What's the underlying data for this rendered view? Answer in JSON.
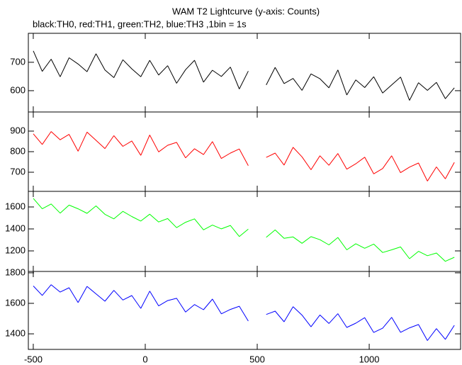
{
  "title": "WAM T2 Lightcurve (y-axis: Counts)",
  "subtitle": "black:TH0, red:TH1, green:TH2, blue:TH3 ,1bin = 1s",
  "chart_data": [
    {
      "type": "line",
      "color": "#000000",
      "x": [
        -500,
        -460,
        -420,
        -380,
        -340,
        -300,
        -260,
        -220,
        -180,
        -140,
        -100,
        -60,
        -20,
        20,
        60,
        100,
        140,
        180,
        220,
        260,
        300,
        340,
        380,
        420,
        460,
        500,
        540,
        580,
        620,
        660,
        700,
        740,
        780,
        820,
        860,
        900,
        940,
        980,
        1020,
        1060,
        1100,
        1140,
        1180,
        1220,
        1260,
        1300,
        1340,
        1380
      ],
      "values": [
        740,
        668,
        711,
        649,
        716,
        694,
        667,
        730,
        673,
        646,
        709,
        677,
        649,
        707,
        655,
        688,
        626,
        674,
        707,
        630,
        672,
        650,
        683,
        606,
        669,
        null,
        620,
        682,
        625,
        643,
        601,
        659,
        642,
        610,
        673,
        585,
        638,
        611,
        649,
        592,
        620,
        648,
        566,
        628,
        601,
        629,
        572,
        610
      ],
      "xlim": [
        -522,
        1408
      ],
      "ylim": [
        525,
        802
      ],
      "yticks": [
        600,
        700
      ]
    },
    {
      "type": "line",
      "color": "#ff0000",
      "x": [
        -500,
        -460,
        -420,
        -380,
        -340,
        -300,
        -260,
        -220,
        -180,
        -140,
        -100,
        -60,
        -20,
        20,
        60,
        100,
        140,
        180,
        220,
        260,
        300,
        340,
        380,
        420,
        460,
        500,
        540,
        580,
        620,
        660,
        700,
        740,
        780,
        820,
        860,
        900,
        940,
        980,
        1020,
        1060,
        1100,
        1140,
        1180,
        1220,
        1260,
        1300,
        1340,
        1380
      ],
      "values": [
        887,
        835,
        898,
        858,
        884,
        802,
        895,
        855,
        815,
        878,
        826,
        852,
        782,
        881,
        799,
        831,
        845,
        770,
        814,
        786,
        849,
        767,
        793,
        813,
        732,
        null,
        772,
        793,
        735,
        821,
        775,
        712,
        780,
        734,
        791,
        715,
        741,
        773,
        692,
        718,
        780,
        698,
        725,
        745,
        657,
        726,
        668,
        748
      ],
      "xlim": [
        -522,
        1408
      ],
      "ylim": [
        607,
        993
      ],
      "yticks": [
        700,
        800,
        900
      ]
    },
    {
      "type": "line",
      "color": "#00ff00",
      "x": [
        -500,
        -460,
        -420,
        -380,
        -340,
        -300,
        -260,
        -220,
        -180,
        -140,
        -100,
        -60,
        -20,
        20,
        60,
        100,
        140,
        180,
        220,
        260,
        300,
        340,
        380,
        420,
        460,
        500,
        540,
        580,
        620,
        660,
        700,
        740,
        780,
        820,
        860,
        900,
        940,
        980,
        1020,
        1060,
        1100,
        1140,
        1180,
        1220,
        1260,
        1300,
        1340,
        1380
      ],
      "values": [
        1678,
        1583,
        1627,
        1544,
        1617,
        1583,
        1542,
        1610,
        1533,
        1492,
        1560,
        1513,
        1472,
        1534,
        1463,
        1494,
        1412,
        1461,
        1492,
        1392,
        1435,
        1401,
        1432,
        1331,
        1399,
        null,
        1323,
        1391,
        1314,
        1327,
        1269,
        1330,
        1302,
        1255,
        1322,
        1210,
        1265,
        1224,
        1262,
        1185,
        1210,
        1236,
        1129,
        1196,
        1156,
        1181,
        1105,
        1142
      ],
      "xlim": [
        -522,
        1408
      ],
      "ylim": [
        1013,
        1742
      ],
      "yticks": [
        1200,
        1400,
        1600
      ]
    },
    {
      "type": "line",
      "color": "#0000ff",
      "x": [
        -500,
        -460,
        -420,
        -380,
        -340,
        -300,
        -260,
        -220,
        -180,
        -140,
        -100,
        -60,
        -20,
        20,
        60,
        100,
        140,
        180,
        220,
        260,
        300,
        340,
        380,
        420,
        460,
        500,
        540,
        580,
        620,
        660,
        700,
        740,
        780,
        820,
        860,
        900,
        940,
        980,
        1020,
        1060,
        1100,
        1140,
        1180,
        1220,
        1260,
        1300,
        1340,
        1380
      ],
      "values": [
        1714,
        1652,
        1722,
        1674,
        1702,
        1605,
        1711,
        1662,
        1614,
        1685,
        1622,
        1651,
        1567,
        1680,
        1583,
        1618,
        1633,
        1543,
        1592,
        1558,
        1628,
        1531,
        1560,
        1581,
        1484,
        null,
        1527,
        1549,
        1479,
        1578,
        1523,
        1446,
        1524,
        1468,
        1532,
        1442,
        1470,
        1506,
        1409,
        1437,
        1508,
        1410,
        1439,
        1461,
        1356,
        1434,
        1364,
        1456
      ],
      "xlim": [
        -522,
        1408
      ],
      "ylim": [
        1298,
        1809
      ],
      "yticks": [
        1400,
        1600,
        1800
      ],
      "xticks": [
        -500,
        0,
        500,
        1000
      ]
    }
  ]
}
